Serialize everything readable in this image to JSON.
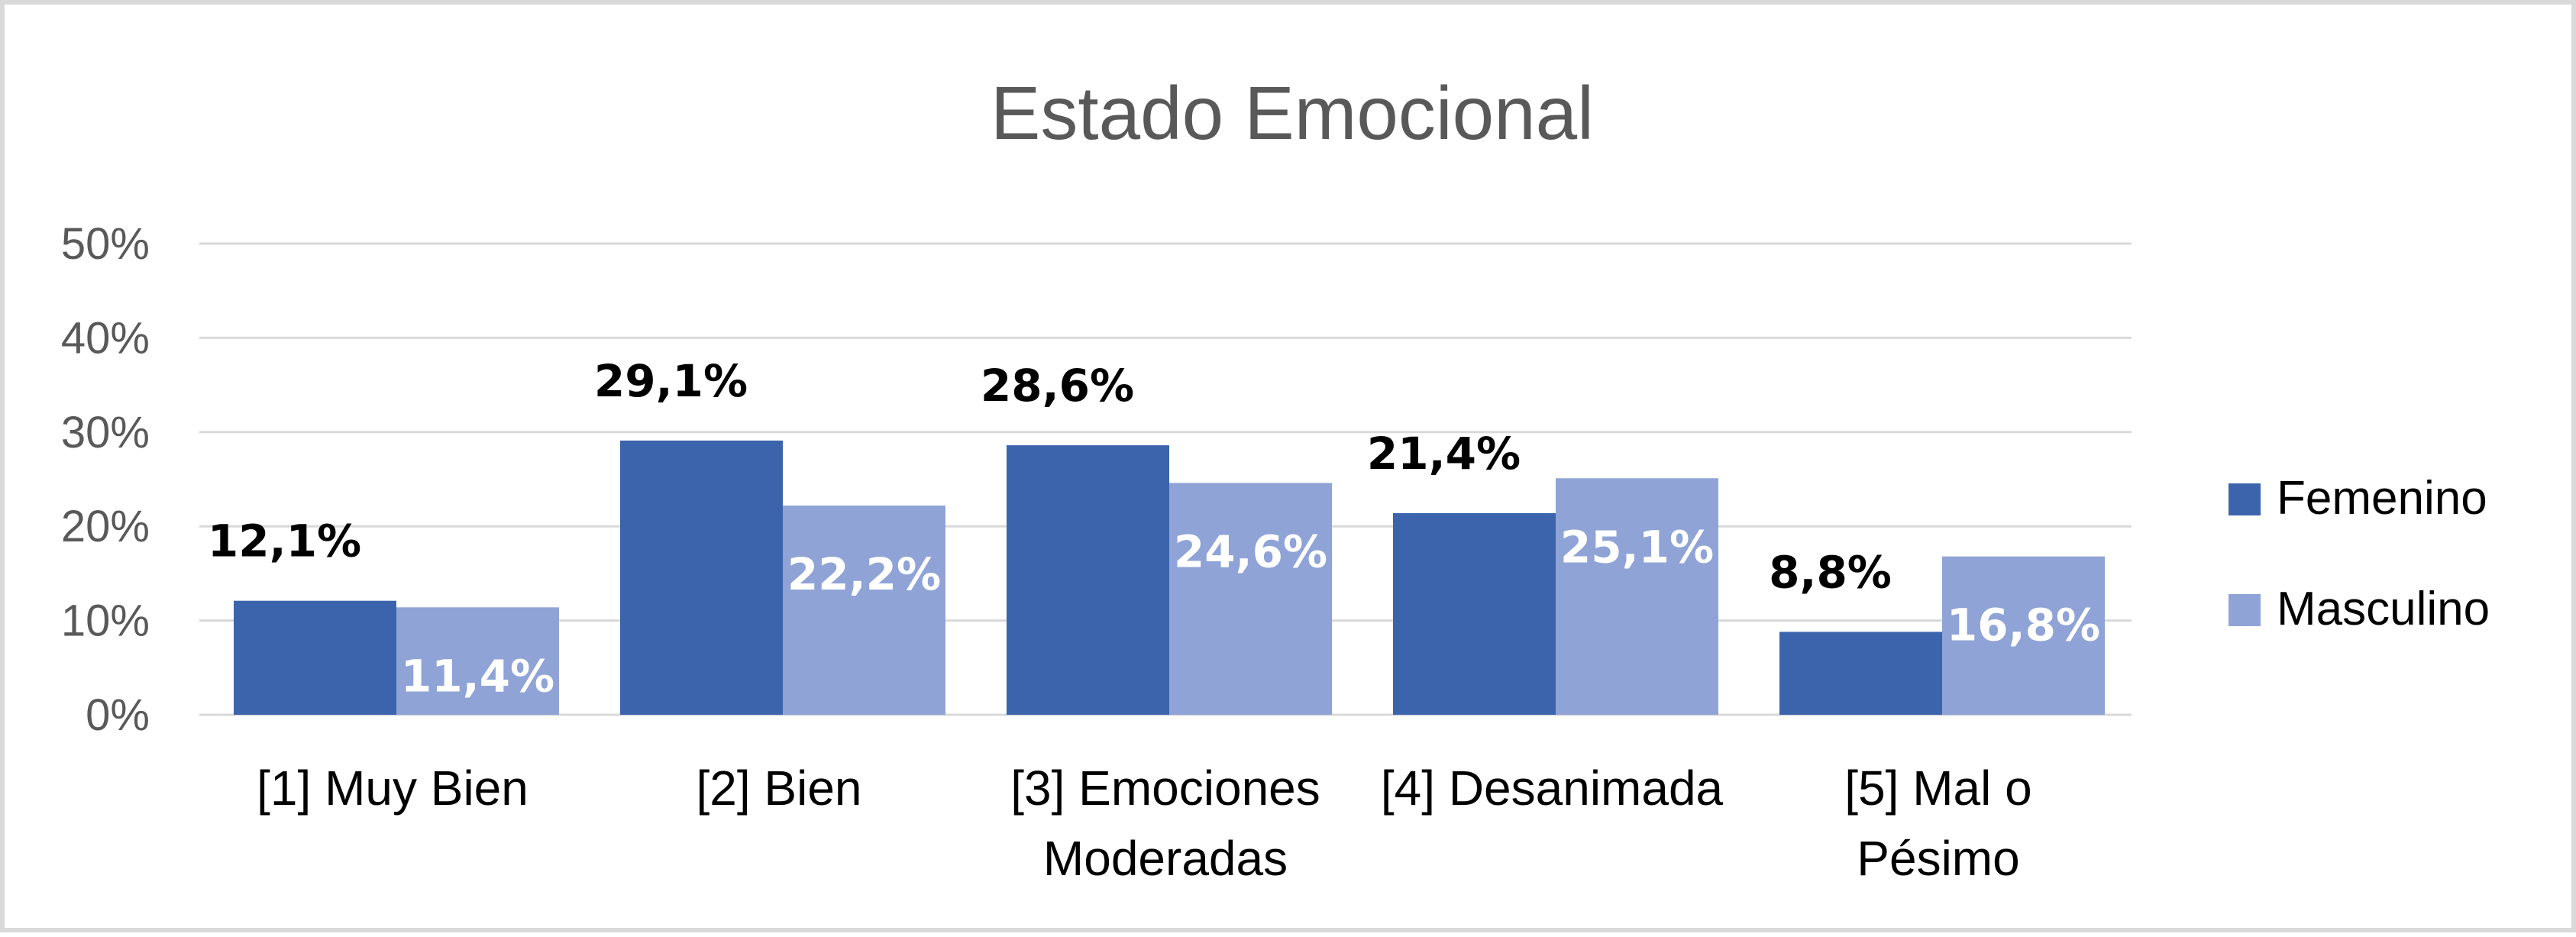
{
  "chart_data": {
    "type": "bar",
    "title": "Estado Emocional",
    "categories": [
      [
        "[1] Muy Bien"
      ],
      [
        "[2] Bien"
      ],
      [
        "[3] Emociones",
        "Moderadas"
      ],
      [
        "[4] Desanimada"
      ],
      [
        "[5] Mal o",
        "Pésimo"
      ]
    ],
    "series": [
      {
        "name": "Femenino",
        "color": "#3c64ad",
        "values": [
          12.1,
          29.1,
          28.6,
          21.4,
          8.8
        ],
        "labels": [
          "12,1%",
          "29,1%",
          "28,6%",
          "21,4%",
          "8,8%"
        ],
        "label_position": "outside-end"
      },
      {
        "name": "Masculino",
        "color": "#8fa3d6",
        "values": [
          11.4,
          22.2,
          24.6,
          25.1,
          16.8
        ],
        "labels": [
          "11,4%",
          "22,2%",
          "24,6%",
          "25,1%",
          "16,8%"
        ],
        "label_position": "inside"
      }
    ],
    "yticks": [
      0,
      10,
      20,
      30,
      40,
      50
    ],
    "ytick_labels": [
      "0%",
      "10%",
      "20%",
      "30%",
      "40%",
      "50%"
    ],
    "ylim": [
      0,
      50
    ],
    "xlabel": "",
    "ylabel": "",
    "grid": true,
    "legend": "right"
  }
}
